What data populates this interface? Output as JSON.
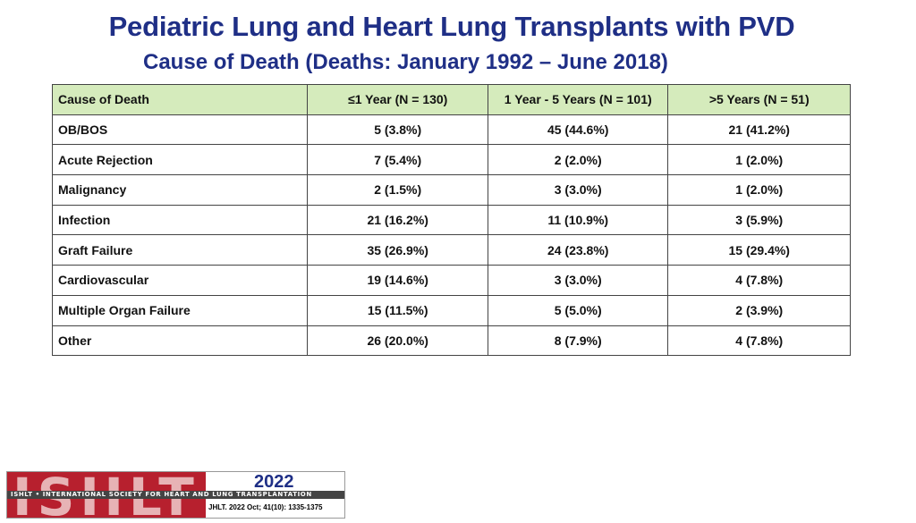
{
  "title": "Pediatric Lung and Heart Lung Transplants with PVD",
  "subtitle": "Cause of Death (Deaths: January 1992 – June 2018)",
  "table": {
    "headers": [
      "Cause of Death",
      "≤1 Year (N = 130)",
      "1 Year - 5 Years (N = 101)",
      ">5 Years (N = 51)"
    ],
    "rows": [
      [
        "OB/BOS",
        "5 (3.8%)",
        "45 (44.6%)",
        "21 (41.2%)"
      ],
      [
        "Acute Rejection",
        "7 (5.4%)",
        "2 (2.0%)",
        "1 (2.0%)"
      ],
      [
        "Malignancy",
        "2 (1.5%)",
        "3 (3.0%)",
        "1 (2.0%)"
      ],
      [
        "Infection",
        "21 (16.2%)",
        "11 (10.9%)",
        "3 (5.9%)"
      ],
      [
        "Graft Failure",
        "35 (26.9%)",
        "24 (23.8%)",
        "15 (29.4%)"
      ],
      [
        "Cardiovascular",
        "19 (14.6%)",
        "3 (3.0%)",
        "4 (7.8%)"
      ],
      [
        "Multiple Organ Failure",
        "15 (11.5%)",
        "5 (5.0%)",
        "2 (3.9%)"
      ],
      [
        "Other",
        "26 (20.0%)",
        "8 (7.9%)",
        "4 (7.8%)"
      ]
    ]
  },
  "logo": {
    "letters": "ISHLT",
    "band_text": "ISHLT • INTERNATIONAL SOCIETY FOR HEART AND LUNG TRANSPLANTATION",
    "year": "2022",
    "citation": "JHLT. 2022 Oct; 41(10): 1335-1375"
  },
  "colors": {
    "title": "#1f2f86",
    "header_fill": "#d5ebbc",
    "logo_red": "#b7202e"
  }
}
